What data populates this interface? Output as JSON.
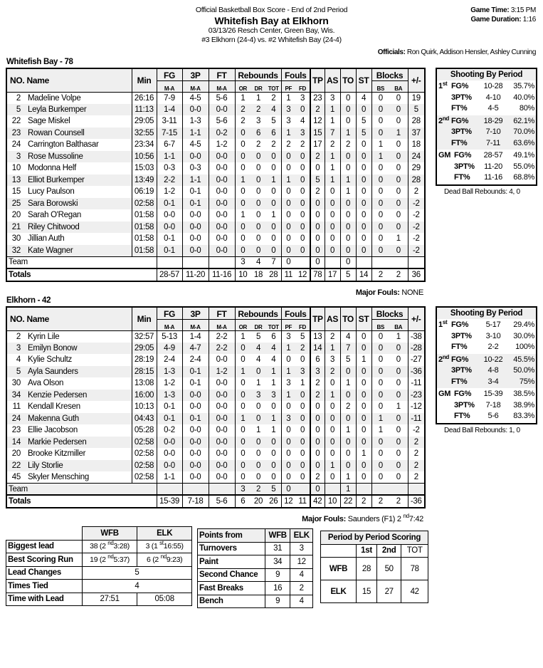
{
  "header": {
    "subtitle": "Official Basketball Box Score - End of 2nd Period",
    "title": "Whitefish Bay at Elkhorn",
    "venue": "03/13/26 Resch Center, Green Bay, Wis.",
    "matchup": "#3 Elkhorn (24-4) vs. #2 Whitefish Bay (24-4)",
    "game_time_label": "Game Time:",
    "game_time": "3:15 PM",
    "duration_label": "Game Duration:",
    "duration": "1:16",
    "officials_label": "Officials:",
    "officials": "Ron Quirk, Addison Hensler, Ashley Cunning"
  },
  "columns": {
    "no_name": "NO. Name",
    "min": "Min",
    "fg": "FG",
    "p3": "3P",
    "ft": "FT",
    "ma": "M-A",
    "rebounds": "Rebounds",
    "or": "OR",
    "dr": "DR",
    "tot": "TOT",
    "fouls": "Fouls",
    "pf": "PF",
    "fd": "FD",
    "tp": "TP",
    "as": "AS",
    "to": "TO",
    "st": "ST",
    "blocks": "Blocks",
    "bs": "BS",
    "ba": "BA",
    "pm": "+/-",
    "team": "Team",
    "totals": "Totals"
  },
  "teams": [
    {
      "title": "Whitefish Bay - 78",
      "players": [
        [
          "2",
          "Madeline Volpe",
          "26:16",
          "7-9",
          "4-5",
          "5-6",
          "1",
          "1",
          "2",
          "1",
          "3",
          "23",
          "3",
          "0",
          "4",
          "0",
          "0",
          "19"
        ],
        [
          "5",
          "Leyla Burkemper",
          "11:13",
          "1-4",
          "0-0",
          "0-0",
          "2",
          "2",
          "4",
          "3",
          "0",
          "2",
          "1",
          "0",
          "0",
          "0",
          "0",
          "5"
        ],
        [
          "22",
          "Sage Miskel",
          "29:05",
          "3-11",
          "1-3",
          "5-6",
          "2",
          "3",
          "5",
          "3",
          "4",
          "12",
          "1",
          "0",
          "5",
          "0",
          "0",
          "28"
        ],
        [
          "23",
          "Rowan Counsell",
          "32:55",
          "7-15",
          "1-1",
          "0-2",
          "0",
          "6",
          "6",
          "1",
          "3",
          "15",
          "7",
          "1",
          "5",
          "0",
          "1",
          "37"
        ],
        [
          "24",
          "Carrington Balthasar",
          "23:34",
          "6-7",
          "4-5",
          "1-2",
          "0",
          "2",
          "2",
          "2",
          "2",
          "17",
          "2",
          "2",
          "0",
          "1",
          "0",
          "18"
        ],
        [
          "3",
          "Rose Mussoline",
          "10:56",
          "1-1",
          "0-0",
          "0-0",
          "0",
          "0",
          "0",
          "0",
          "0",
          "2",
          "1",
          "0",
          "0",
          "1",
          "0",
          "24"
        ],
        [
          "10",
          "Modonna Helf",
          "15:03",
          "0-3",
          "0-3",
          "0-0",
          "0",
          "0",
          "0",
          "0",
          "0",
          "0",
          "1",
          "0",
          "0",
          "0",
          "0",
          "29"
        ],
        [
          "13",
          "Elliot Burkemper",
          "13:49",
          "2-2",
          "1-1",
          "0-0",
          "1",
          "0",
          "1",
          "1",
          "0",
          "5",
          "1",
          "1",
          "0",
          "0",
          "0",
          "28"
        ],
        [
          "15",
          "Lucy Paulson",
          "06:19",
          "1-2",
          "0-1",
          "0-0",
          "0",
          "0",
          "0",
          "0",
          "0",
          "2",
          "0",
          "1",
          "0",
          "0",
          "0",
          "2"
        ],
        [
          "25",
          "Sara Borowski",
          "02:58",
          "0-1",
          "0-1",
          "0-0",
          "0",
          "0",
          "0",
          "0",
          "0",
          "0",
          "0",
          "0",
          "0",
          "0",
          "0",
          "-2"
        ],
        [
          "20",
          "Sarah O'Regan",
          "01:58",
          "0-0",
          "0-0",
          "0-0",
          "1",
          "0",
          "1",
          "0",
          "0",
          "0",
          "0",
          "0",
          "0",
          "0",
          "0",
          "-2"
        ],
        [
          "21",
          "Riley Chitwood",
          "01:58",
          "0-0",
          "0-0",
          "0-0",
          "0",
          "0",
          "0",
          "0",
          "0",
          "0",
          "0",
          "0",
          "0",
          "0",
          "0",
          "-2"
        ],
        [
          "30",
          "Jillian Auth",
          "01:58",
          "0-1",
          "0-0",
          "0-0",
          "0",
          "0",
          "0",
          "0",
          "0",
          "0",
          "0",
          "0",
          "0",
          "0",
          "1",
          "-2"
        ],
        [
          "32",
          "Kate Wagner",
          "01:58",
          "0-1",
          "0-0",
          "0-0",
          "0",
          "0",
          "0",
          "0",
          "0",
          "0",
          "0",
          "0",
          "0",
          "0",
          "0",
          "-2"
        ]
      ],
      "team_row": [
        "",
        "",
        "",
        "",
        "3",
        "4",
        "7",
        "0",
        "",
        "0",
        "",
        "0",
        "",
        "",
        "",
        ""
      ],
      "totals": [
        "",
        "28-57",
        "11-20",
        "11-16",
        "10",
        "18",
        "28",
        "11",
        "12",
        "78",
        "17",
        "5",
        "14",
        "2",
        "2",
        "36"
      ],
      "major_fouls_label": "Major Fouls:",
      "major_fouls": [
        "NONE",
        "",
        ""
      ],
      "shooting": [
        {
          "period": "1",
          "sup": "st",
          "rows": [
            [
              "FG%",
              "10-28",
              "35.7%"
            ],
            [
              "3PT%",
              "4-10",
              "40.0%"
            ],
            [
              "FT%",
              "4-5",
              "80%"
            ]
          ]
        },
        {
          "period": "2",
          "sup": "nd",
          "rows": [
            [
              "FG%",
              "18-29",
              "62.1%"
            ],
            [
              "3PT%",
              "7-10",
              "70.0%"
            ],
            [
              "FT%",
              "7-11",
              "63.6%"
            ]
          ]
        },
        {
          "period": "GM",
          "sup": "",
          "rows": [
            [
              "FG%",
              "28-57",
              "49.1%"
            ],
            [
              "3PT%",
              "11-20",
              "55.0%"
            ],
            [
              "FT%",
              "11-16",
              "68.8%"
            ]
          ]
        }
      ],
      "dead_ball": "Dead Ball Rebounds: 4, 0"
    },
    {
      "title": "Elkhorn - 42",
      "players": [
        [
          "2",
          "Kyrin Lile",
          "32:57",
          "5-13",
          "1-4",
          "2-2",
          "1",
          "5",
          "6",
          "3",
          "5",
          "13",
          "2",
          "4",
          "0",
          "0",
          "1",
          "-38"
        ],
        [
          "3",
          "Emilyn Bonow",
          "29:05",
          "4-9",
          "4-7",
          "2-2",
          "0",
          "4",
          "4",
          "1",
          "2",
          "14",
          "1",
          "7",
          "0",
          "0",
          "0",
          "-28"
        ],
        [
          "4",
          "Kylie Schultz",
          "28:19",
          "2-4",
          "2-4",
          "0-0",
          "0",
          "4",
          "4",
          "0",
          "0",
          "6",
          "3",
          "5",
          "1",
          "0",
          "0",
          "-27"
        ],
        [
          "5",
          "Ayla Saunders",
          "28:15",
          "1-3",
          "0-1",
          "1-2",
          "1",
          "0",
          "1",
          "1",
          "3",
          "3",
          "2",
          "0",
          "0",
          "0",
          "0",
          "-36"
        ],
        [
          "30",
          "Ava Olson",
          "13:08",
          "1-2",
          "0-1",
          "0-0",
          "0",
          "1",
          "1",
          "3",
          "1",
          "2",
          "0",
          "1",
          "0",
          "0",
          "0",
          "-11"
        ],
        [
          "34",
          "Kenzie Pedersen",
          "16:00",
          "1-3",
          "0-0",
          "0-0",
          "0",
          "3",
          "3",
          "1",
          "0",
          "2",
          "1",
          "0",
          "0",
          "0",
          "0",
          "-23"
        ],
        [
          "11",
          "Kendall Kresen",
          "10:13",
          "0-1",
          "0-0",
          "0-0",
          "0",
          "0",
          "0",
          "0",
          "0",
          "0",
          "0",
          "2",
          "0",
          "0",
          "1",
          "-12"
        ],
        [
          "24",
          "Makenna Guth",
          "04:43",
          "0-1",
          "0-1",
          "0-0",
          "1",
          "0",
          "1",
          "3",
          "0",
          "0",
          "0",
          "0",
          "0",
          "1",
          "0",
          "-11"
        ],
        [
          "23",
          "Ellie Jacobson",
          "05:28",
          "0-2",
          "0-0",
          "0-0",
          "0",
          "1",
          "1",
          "0",
          "0",
          "0",
          "0",
          "1",
          "0",
          "1",
          "0",
          "-2"
        ],
        [
          "14",
          "Markie Pedersen",
          "02:58",
          "0-0",
          "0-0",
          "0-0",
          "0",
          "0",
          "0",
          "0",
          "0",
          "0",
          "0",
          "0",
          "0",
          "0",
          "0",
          "2"
        ],
        [
          "20",
          "Brooke Kitzmiller",
          "02:58",
          "0-0",
          "0-0",
          "0-0",
          "0",
          "0",
          "0",
          "0",
          "0",
          "0",
          "0",
          "0",
          "1",
          "0",
          "0",
          "2"
        ],
        [
          "22",
          "Lily Storlie",
          "02:58",
          "0-0",
          "0-0",
          "0-0",
          "0",
          "0",
          "0",
          "0",
          "0",
          "0",
          "1",
          "0",
          "0",
          "0",
          "0",
          "2"
        ],
        [
          "45",
          "Skyler Mensching",
          "02:58",
          "1-1",
          "0-0",
          "0-0",
          "0",
          "0",
          "0",
          "0",
          "0",
          "2",
          "0",
          "1",
          "0",
          "0",
          "0",
          "2"
        ]
      ],
      "team_row": [
        "",
        "",
        "",
        "",
        "3",
        "2",
        "5",
        "0",
        "",
        "0",
        "",
        "1",
        "",
        "",
        "",
        ""
      ],
      "totals": [
        "",
        "15-39",
        "7-18",
        "5-6",
        "6",
        "20",
        "26",
        "12",
        "11",
        "42",
        "10",
        "22",
        "2",
        "2",
        "2",
        "-36"
      ],
      "major_fouls_label": "Major Fouls:",
      "major_fouls": [
        "Saunders (F1) 2",
        "nd",
        "7:42"
      ],
      "shooting": [
        {
          "period": "1",
          "sup": "st",
          "rows": [
            [
              "FG%",
              "5-17",
              "29.4%"
            ],
            [
              "3PT%",
              "3-10",
              "30.0%"
            ],
            [
              "FT%",
              "2-2",
              "100%"
            ]
          ]
        },
        {
          "period": "2",
          "sup": "nd",
          "rows": [
            [
              "FG%",
              "10-22",
              "45.5%"
            ],
            [
              "3PT%",
              "4-8",
              "50.0%"
            ],
            [
              "FT%",
              "3-4",
              "75%"
            ]
          ]
        },
        {
          "period": "GM",
          "sup": "",
          "rows": [
            [
              "FG%",
              "15-39",
              "38.5%"
            ],
            [
              "3PT%",
              "7-18",
              "38.9%"
            ],
            [
              "FT%",
              "5-6",
              "83.3%"
            ]
          ]
        }
      ],
      "dead_ball": "Dead Ball Rebounds: 1, 0"
    }
  ],
  "shooting_title": "Shooting By Period",
  "game_stats": {
    "cols": [
      "WFB",
      "ELK"
    ],
    "biggest_lead": {
      "label": "Biggest lead",
      "wfb": [
        "38 (2",
        "nd",
        "3:28)"
      ],
      "elk": [
        "3 (1",
        "st",
        "16:55)"
      ]
    },
    "best_run": {
      "label": "Best Scoring Run",
      "wfb": [
        "19 (2",
        "nd",
        "5:37)"
      ],
      "elk": [
        "6 (2",
        "nd",
        "9:23)"
      ]
    },
    "lead_changes": {
      "label": "Lead Changes",
      "value": "5"
    },
    "times_tied": {
      "label": "Times Tied",
      "value": "4"
    },
    "time_with_lead": {
      "label": "Time with Lead",
      "wfb": "27:51",
      "elk": "05:08"
    }
  },
  "points_from": {
    "title": "Points from",
    "cols": [
      "WFB",
      "ELK"
    ],
    "rows": [
      [
        "Turnovers",
        "31",
        "3"
      ],
      [
        "Paint",
        "34",
        "12"
      ],
      [
        "Second Chance",
        "9",
        "4"
      ],
      [
        "Fast Breaks",
        "16",
        "2"
      ],
      [
        "Bench",
        "9",
        "4"
      ]
    ]
  },
  "period_scoring": {
    "title": "Period by Period Scoring",
    "cols": [
      "1st",
      "2nd",
      "TOT"
    ],
    "rows": [
      [
        "WFB",
        "28",
        "50",
        "78"
      ],
      [
        "ELK",
        "15",
        "27",
        "42"
      ]
    ]
  }
}
